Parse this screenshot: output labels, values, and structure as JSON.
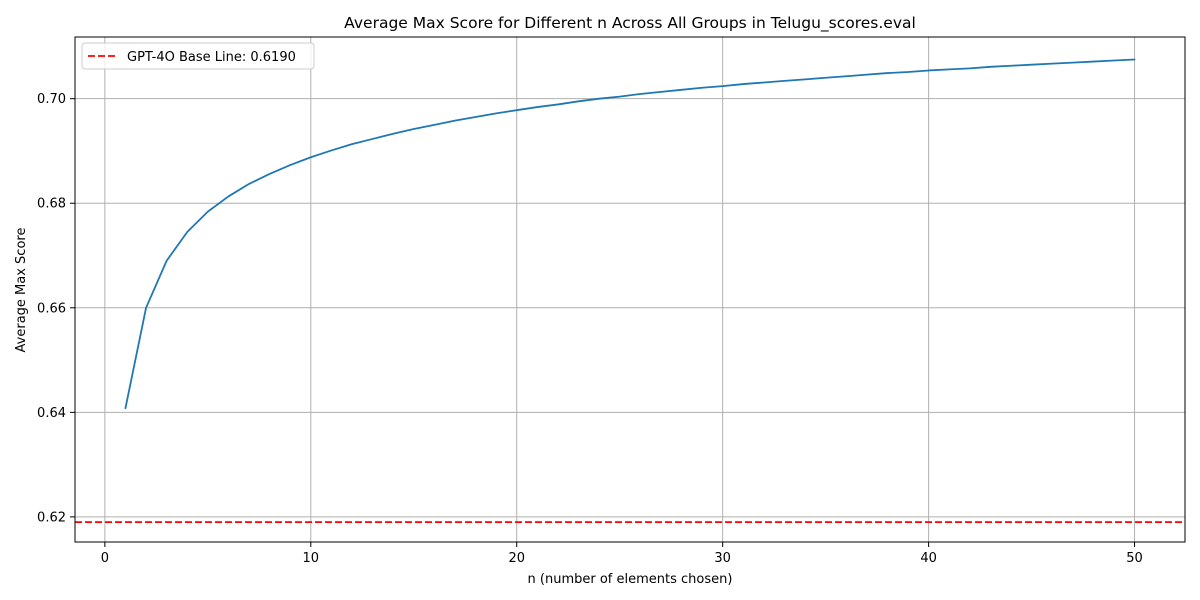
{
  "chart_data": {
    "type": "line",
    "title": "Average Max Score for Different n Across All Groups in Telugu_scores.eval",
    "xlabel": "n (number of elements chosen)",
    "ylabel": "Average Max Score",
    "xlim": [
      -1.45,
      52.45
    ],
    "ylim": [
      0.6152,
      0.7118
    ],
    "xticks": [
      0,
      10,
      20,
      30,
      40,
      50
    ],
    "xtick_labels": [
      "0",
      "10",
      "20",
      "30",
      "40",
      "50"
    ],
    "yticks": [
      0.62,
      0.64,
      0.66,
      0.68,
      0.7
    ],
    "ytick_labels": [
      "0.62",
      "0.64",
      "0.66",
      "0.68",
      "0.70"
    ],
    "grid": true,
    "legend_placement": "top-left",
    "series": [
      {
        "color": "#1f77b4",
        "x": [
          1,
          2,
          3,
          4,
          5,
          6,
          7,
          8,
          9,
          10,
          11,
          12,
          13,
          14,
          15,
          16,
          17,
          18,
          19,
          20,
          21,
          22,
          23,
          24,
          25,
          26,
          27,
          28,
          29,
          30,
          31,
          32,
          33,
          34,
          35,
          36,
          37,
          38,
          39,
          40,
          41,
          42,
          43,
          44,
          45,
          46,
          47,
          48,
          49,
          50
        ],
        "y": [
          0.6408,
          0.66,
          0.669,
          0.6745,
          0.6784,
          0.6813,
          0.6837,
          0.6856,
          0.6873,
          0.6888,
          0.6901,
          0.6913,
          0.6923,
          0.6933,
          0.6942,
          0.695,
          0.6958,
          0.6965,
          0.6972,
          0.6978,
          0.6984,
          0.6989,
          0.6995,
          0.7,
          0.7004,
          0.7009,
          0.7013,
          0.7017,
          0.7021,
          0.7024,
          0.7028,
          0.7031,
          0.7034,
          0.7037,
          0.704,
          0.7043,
          0.7046,
          0.7049,
          0.7051,
          0.7054,
          0.7056,
          0.7058,
          0.7061,
          0.7063,
          0.7065,
          0.7067,
          0.7069,
          0.7071,
          0.7073,
          0.7075
        ]
      }
    ],
    "reference_lines": [
      {
        "name": "GPT-4O Base Line: 0.6190",
        "y": 0.619,
        "color": "#ff0000",
        "style": "dashed"
      }
    ]
  }
}
